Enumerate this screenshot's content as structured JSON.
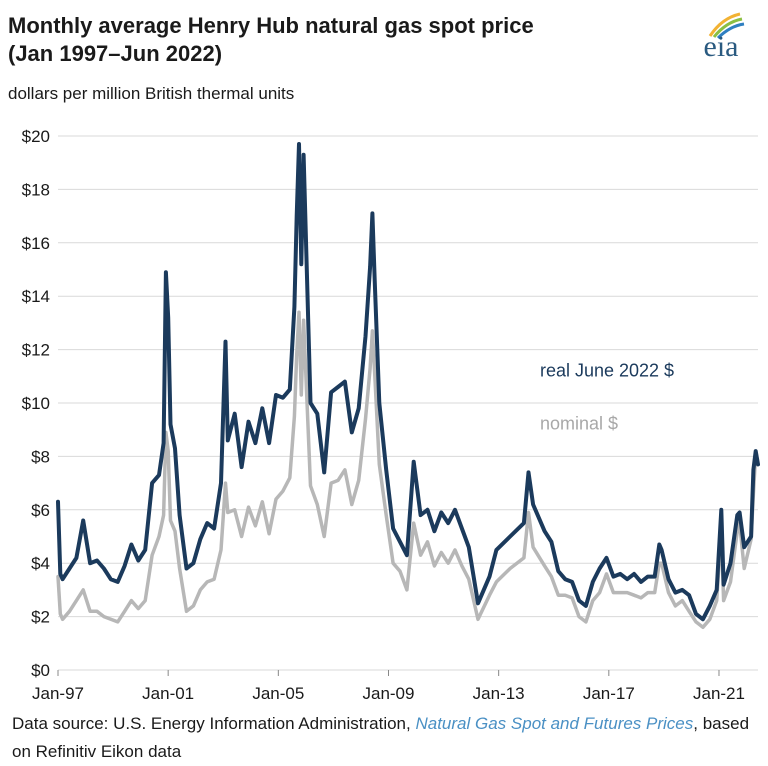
{
  "header": {
    "title_line1": "Monthly average Henry Hub natural gas spot price",
    "title_line2": "(Jan 1997–Jun 2022)",
    "subtitle": "dollars per million British thermal units",
    "logo_text": "eia"
  },
  "footer": {
    "source_prefix": "Data source: U.S. Energy Information Administration, ",
    "source_link": "Natural Gas Spot and Futures Prices",
    "source_suffix": ", based on Refinitiv Eikon data"
  },
  "colors": {
    "real": "#1b3a5c",
    "nominal": "#b7b7b7",
    "grid": "#d9d9d9",
    "link": "#4a90c4"
  },
  "chart_data": {
    "type": "line",
    "title": "Monthly average Henry Hub natural gas spot price (Jan 1997–Jun 2022)",
    "ylabel": "dollars per million British thermal units",
    "xlim": [
      "1997-01",
      "2022-06"
    ],
    "ylim": [
      0,
      20
    ],
    "grid": true,
    "y_ticks": [
      "$0",
      "$2",
      "$4",
      "$6",
      "$8",
      "$10",
      "$12",
      "$14",
      "$16",
      "$18",
      "$20"
    ],
    "x_ticks": [
      {
        "label": "Jan-97",
        "date": "1997-01"
      },
      {
        "label": "Jan-01",
        "date": "2001-01"
      },
      {
        "label": "Jan-05",
        "date": "2005-01"
      },
      {
        "label": "Jan-09",
        "date": "2009-01"
      },
      {
        "label": "Jan-13",
        "date": "2013-01"
      },
      {
        "label": "Jan-17",
        "date": "2017-01"
      },
      {
        "label": "Jan-21",
        "date": "2021-01"
      }
    ],
    "series": [
      {
        "name": "real June 2022 $",
        "points": [
          [
            "1997-01",
            6.3
          ],
          [
            "1997-02",
            3.6
          ],
          [
            "1997-03",
            3.4
          ],
          [
            "1997-06",
            3.8
          ],
          [
            "1997-09",
            4.2
          ],
          [
            "1997-12",
            5.6
          ],
          [
            "1998-03",
            4.0
          ],
          [
            "1998-06",
            4.1
          ],
          [
            "1998-09",
            3.8
          ],
          [
            "1998-12",
            3.4
          ],
          [
            "1999-03",
            3.3
          ],
          [
            "1999-06",
            3.9
          ],
          [
            "1999-09",
            4.7
          ],
          [
            "1999-12",
            4.1
          ],
          [
            "2000-03",
            4.5
          ],
          [
            "2000-06",
            7.0
          ],
          [
            "2000-09",
            7.3
          ],
          [
            "2000-11",
            8.5
          ],
          [
            "2000-12",
            14.9
          ],
          [
            "2001-01",
            13.2
          ],
          [
            "2001-02",
            9.2
          ],
          [
            "2001-04",
            8.3
          ],
          [
            "2001-06",
            5.8
          ],
          [
            "2001-09",
            3.8
          ],
          [
            "2001-12",
            4.0
          ],
          [
            "2002-03",
            4.9
          ],
          [
            "2002-06",
            5.5
          ],
          [
            "2002-09",
            5.3
          ],
          [
            "2002-12",
            7.0
          ],
          [
            "2003-02",
            12.3
          ],
          [
            "2003-03",
            8.6
          ],
          [
            "2003-06",
            9.6
          ],
          [
            "2003-09",
            7.6
          ],
          [
            "2003-12",
            9.3
          ],
          [
            "2004-03",
            8.5
          ],
          [
            "2004-06",
            9.8
          ],
          [
            "2004-09",
            8.5
          ],
          [
            "2004-12",
            10.3
          ],
          [
            "2005-03",
            10.2
          ],
          [
            "2005-06",
            10.5
          ],
          [
            "2005-08",
            13.6
          ],
          [
            "2005-09",
            17.0
          ],
          [
            "2005-10",
            19.7
          ],
          [
            "2005-11",
            15.2
          ],
          [
            "2005-12",
            19.3
          ],
          [
            "2006-03",
            10.0
          ],
          [
            "2006-06",
            9.6
          ],
          [
            "2006-09",
            7.4
          ],
          [
            "2006-12",
            10.4
          ],
          [
            "2007-03",
            10.6
          ],
          [
            "2007-06",
            10.8
          ],
          [
            "2007-09",
            8.9
          ],
          [
            "2007-12",
            9.8
          ],
          [
            "2008-03",
            12.5
          ],
          [
            "2008-05",
            15.1
          ],
          [
            "2008-06",
            17.1
          ],
          [
            "2008-07",
            14.6
          ],
          [
            "2008-09",
            10.0
          ],
          [
            "2008-12",
            7.5
          ],
          [
            "2009-03",
            5.3
          ],
          [
            "2009-06",
            4.8
          ],
          [
            "2009-09",
            4.3
          ],
          [
            "2009-12",
            7.8
          ],
          [
            "2010-03",
            5.8
          ],
          [
            "2010-06",
            6.0
          ],
          [
            "2010-09",
            5.2
          ],
          [
            "2010-12",
            5.9
          ],
          [
            "2011-03",
            5.5
          ],
          [
            "2011-06",
            6.0
          ],
          [
            "2011-09",
            5.3
          ],
          [
            "2011-12",
            4.6
          ],
          [
            "2012-04",
            2.5
          ],
          [
            "2012-09",
            3.5
          ],
          [
            "2012-12",
            4.5
          ],
          [
            "2013-06",
            5.0
          ],
          [
            "2013-12",
            5.5
          ],
          [
            "2014-02",
            7.4
          ],
          [
            "2014-04",
            6.2
          ],
          [
            "2014-09",
            5.2
          ],
          [
            "2014-12",
            4.8
          ],
          [
            "2015-03",
            3.7
          ],
          [
            "2015-06",
            3.4
          ],
          [
            "2015-09",
            3.3
          ],
          [
            "2015-12",
            2.6
          ],
          [
            "2016-03",
            2.4
          ],
          [
            "2016-06",
            3.3
          ],
          [
            "2016-09",
            3.8
          ],
          [
            "2016-12",
            4.2
          ],
          [
            "2017-03",
            3.5
          ],
          [
            "2017-06",
            3.6
          ],
          [
            "2017-09",
            3.4
          ],
          [
            "2017-12",
            3.6
          ],
          [
            "2018-03",
            3.3
          ],
          [
            "2018-06",
            3.5
          ],
          [
            "2018-09",
            3.5
          ],
          [
            "2018-11",
            4.7
          ],
          [
            "2018-12",
            4.5
          ],
          [
            "2019-03",
            3.4
          ],
          [
            "2019-06",
            2.9
          ],
          [
            "2019-09",
            3.0
          ],
          [
            "2019-12",
            2.8
          ],
          [
            "2020-03",
            2.1
          ],
          [
            "2020-06",
            1.9
          ],
          [
            "2020-09",
            2.4
          ],
          [
            "2020-12",
            3.0
          ],
          [
            "2021-02",
            6.0
          ],
          [
            "2021-03",
            3.2
          ],
          [
            "2021-06",
            4.0
          ],
          [
            "2021-09",
            5.8
          ],
          [
            "2021-10",
            5.9
          ],
          [
            "2021-12",
            4.6
          ],
          [
            "2022-03",
            5.0
          ],
          [
            "2022-04",
            7.5
          ],
          [
            "2022-05",
            8.2
          ],
          [
            "2022-06",
            7.7
          ]
        ]
      },
      {
        "name": "nominal $",
        "points": [
          [
            "1997-01",
            3.5
          ],
          [
            "1997-02",
            2.1
          ],
          [
            "1997-03",
            1.9
          ],
          [
            "1997-06",
            2.2
          ],
          [
            "1997-09",
            2.6
          ],
          [
            "1997-12",
            3.0
          ],
          [
            "1998-03",
            2.2
          ],
          [
            "1998-06",
            2.2
          ],
          [
            "1998-09",
            2.0
          ],
          [
            "1998-12",
            1.9
          ],
          [
            "1999-03",
            1.8
          ],
          [
            "1999-06",
            2.2
          ],
          [
            "1999-09",
            2.6
          ],
          [
            "1999-12",
            2.3
          ],
          [
            "2000-03",
            2.6
          ],
          [
            "2000-06",
            4.3
          ],
          [
            "2000-09",
            5.0
          ],
          [
            "2000-11",
            5.8
          ],
          [
            "2000-12",
            8.9
          ],
          [
            "2001-01",
            8.2
          ],
          [
            "2001-02",
            5.6
          ],
          [
            "2001-04",
            5.2
          ],
          [
            "2001-06",
            3.8
          ],
          [
            "2001-09",
            2.2
          ],
          [
            "2001-12",
            2.4
          ],
          [
            "2002-03",
            3.0
          ],
          [
            "2002-06",
            3.3
          ],
          [
            "2002-09",
            3.4
          ],
          [
            "2002-12",
            4.5
          ],
          [
            "2003-02",
            7.0
          ],
          [
            "2003-03",
            5.9
          ],
          [
            "2003-06",
            6.0
          ],
          [
            "2003-09",
            5.0
          ],
          [
            "2003-12",
            6.1
          ],
          [
            "2004-03",
            5.4
          ],
          [
            "2004-06",
            6.3
          ],
          [
            "2004-09",
            5.1
          ],
          [
            "2004-12",
            6.4
          ],
          [
            "2005-03",
            6.7
          ],
          [
            "2005-06",
            7.2
          ],
          [
            "2005-08",
            9.5
          ],
          [
            "2005-09",
            11.8
          ],
          [
            "2005-10",
            13.4
          ],
          [
            "2005-11",
            10.3
          ],
          [
            "2005-12",
            13.1
          ],
          [
            "2006-03",
            6.9
          ],
          [
            "2006-06",
            6.2
          ],
          [
            "2006-09",
            5.0
          ],
          [
            "2006-12",
            7.0
          ],
          [
            "2007-03",
            7.1
          ],
          [
            "2007-06",
            7.5
          ],
          [
            "2007-09",
            6.2
          ],
          [
            "2007-12",
            7.1
          ],
          [
            "2008-03",
            9.4
          ],
          [
            "2008-05",
            11.3
          ],
          [
            "2008-06",
            12.7
          ],
          [
            "2008-07",
            11.1
          ],
          [
            "2008-09",
            7.7
          ],
          [
            "2008-12",
            5.8
          ],
          [
            "2009-03",
            4.0
          ],
          [
            "2009-06",
            3.7
          ],
          [
            "2009-09",
            3.0
          ],
          [
            "2009-12",
            5.5
          ],
          [
            "2010-03",
            4.3
          ],
          [
            "2010-06",
            4.8
          ],
          [
            "2010-09",
            3.9
          ],
          [
            "2010-12",
            4.4
          ],
          [
            "2011-03",
            4.0
          ],
          [
            "2011-06",
            4.5
          ],
          [
            "2011-09",
            3.9
          ],
          [
            "2011-12",
            3.4
          ],
          [
            "2012-04",
            1.9
          ],
          [
            "2012-09",
            2.8
          ],
          [
            "2012-12",
            3.3
          ],
          [
            "2013-06",
            3.8
          ],
          [
            "2013-12",
            4.2
          ],
          [
            "2014-02",
            5.9
          ],
          [
            "2014-04",
            4.6
          ],
          [
            "2014-09",
            3.9
          ],
          [
            "2014-12",
            3.5
          ],
          [
            "2015-03",
            2.8
          ],
          [
            "2015-06",
            2.8
          ],
          [
            "2015-09",
            2.7
          ],
          [
            "2015-12",
            2.0
          ],
          [
            "2016-03",
            1.8
          ],
          [
            "2016-06",
            2.6
          ],
          [
            "2016-09",
            2.9
          ],
          [
            "2016-12",
            3.6
          ],
          [
            "2017-03",
            2.9
          ],
          [
            "2017-06",
            2.9
          ],
          [
            "2017-09",
            2.9
          ],
          [
            "2017-12",
            2.8
          ],
          [
            "2018-03",
            2.7
          ],
          [
            "2018-06",
            2.9
          ],
          [
            "2018-09",
            2.9
          ],
          [
            "2018-11",
            4.0
          ],
          [
            "2018-12",
            4.0
          ],
          [
            "2019-03",
            2.9
          ],
          [
            "2019-06",
            2.4
          ],
          [
            "2019-09",
            2.6
          ],
          [
            "2019-12",
            2.2
          ],
          [
            "2020-03",
            1.8
          ],
          [
            "2020-06",
            1.6
          ],
          [
            "2020-09",
            1.9
          ],
          [
            "2020-12",
            2.6
          ],
          [
            "2021-02",
            5.3
          ],
          [
            "2021-03",
            2.6
          ],
          [
            "2021-06",
            3.3
          ],
          [
            "2021-09",
            5.2
          ],
          [
            "2021-10",
            5.5
          ],
          [
            "2021-12",
            3.8
          ],
          [
            "2022-03",
            4.9
          ],
          [
            "2022-04",
            6.6
          ],
          [
            "2022-05",
            8.1
          ],
          [
            "2022-06",
            7.7
          ]
        ]
      }
    ],
    "annotations": [
      {
        "text": "real June 2022 $",
        "series": "real June 2022 $",
        "x": "2014-07",
        "y": 11.0
      },
      {
        "text": "nominal $",
        "series": "nominal $",
        "x": "2014-07",
        "y": 9.0
      }
    ]
  }
}
